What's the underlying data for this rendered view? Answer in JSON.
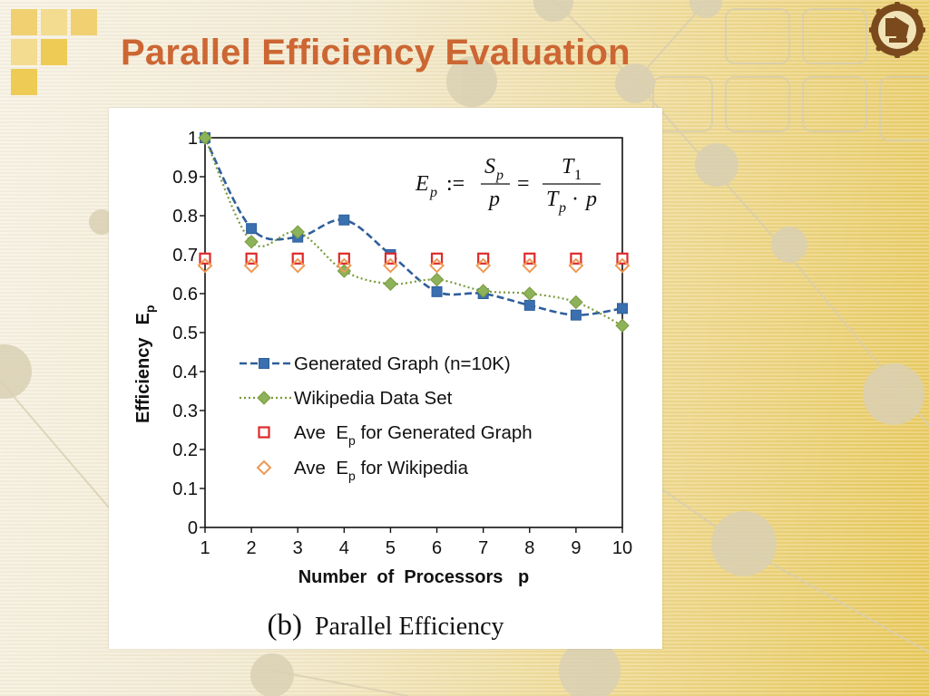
{
  "slide": {
    "title": "Parallel Efficiency Evaluation"
  },
  "colors": {
    "title": "#cc6633",
    "generated": "#2f5f9a",
    "wikipedia": "#7a9a3a",
    "wikipedia_marker": "#8db35a",
    "ave_generated": "#dd2a2a",
    "ave_wikipedia": "#ee9955"
  },
  "figure": {
    "caption_label": "(b)",
    "caption_text": "Parallel Efficiency",
    "formula": {
      "lhs": "E",
      "lhs_sub": "p",
      "assign": ":=",
      "frac1_num": "S",
      "frac1_num_sub": "p",
      "frac1_den": "p",
      "equals": "=",
      "frac2_num": "T",
      "frac2_num_sub": "1",
      "frac2_den_a": "T",
      "frac2_den_a_sub": "p",
      "frac2_den_op": "·",
      "frac2_den_b": "p"
    }
  },
  "chart_data": {
    "type": "line",
    "xlabel": "Number  of  Processors   p",
    "ylabel": "Efficiency",
    "ylabel_symbol": "E",
    "ylabel_symbol_sub": "p",
    "x": [
      1,
      2,
      3,
      4,
      5,
      6,
      7,
      8,
      9,
      10
    ],
    "xlim": [
      1,
      10
    ],
    "ylim": [
      0,
      1
    ],
    "x_ticks": [
      "1",
      "2",
      "3",
      "4",
      "5",
      "6",
      "7",
      "8",
      "9",
      "10"
    ],
    "y_ticks": [
      "0",
      "0.1",
      "0.2",
      "0.3",
      "0.4",
      "0.5",
      "0.6",
      "0.7",
      "0.8",
      "0.9",
      "1"
    ],
    "grid": false,
    "legend_position": "lower-left",
    "series": [
      {
        "name": "Generated Graph (n=10K)",
        "style": "dashed",
        "marker": "square",
        "values": [
          1.0,
          0.767,
          0.745,
          0.789,
          0.7,
          0.605,
          0.6,
          0.57,
          0.545,
          0.562
        ]
      },
      {
        "name": "Wikipedia Data Set",
        "style": "dotted",
        "marker": "diamond",
        "values": [
          1.0,
          0.733,
          0.758,
          0.658,
          0.625,
          0.636,
          0.607,
          0.6,
          0.578,
          0.518
        ]
      },
      {
        "name": "Ave  E",
        "name_sub": "p",
        "name_rest": " for Generated Graph",
        "style": "none",
        "marker": "open-square",
        "values": [
          0.69,
          0.69,
          0.69,
          0.69,
          0.69,
          0.69,
          0.69,
          0.69,
          0.69,
          0.69
        ]
      },
      {
        "name": "Ave  E",
        "name_sub": "p",
        "name_rest": " for Wikipedia",
        "style": "none",
        "marker": "open-diamond",
        "values": [
          0.672,
          0.672,
          0.672,
          0.672,
          0.672,
          0.672,
          0.672,
          0.672,
          0.672,
          0.672
        ]
      }
    ]
  }
}
